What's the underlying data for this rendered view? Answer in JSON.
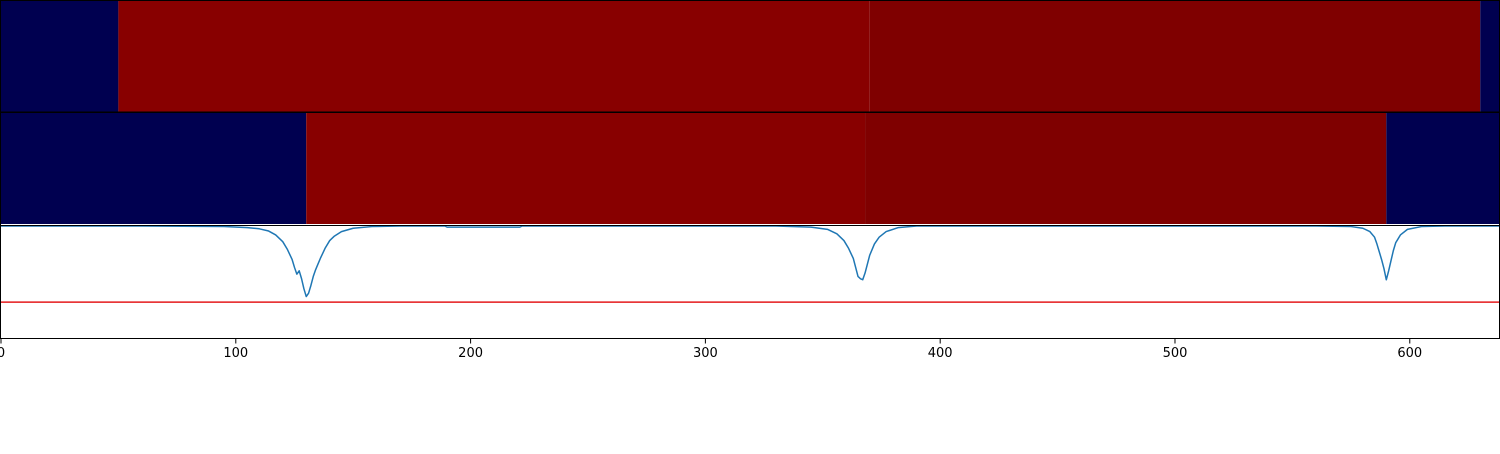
{
  "chart_data": {
    "type": "line",
    "title": "",
    "xlabel": "",
    "ylabel": "",
    "xlim": [
      0,
      638
    ],
    "x_ticks": [
      0,
      100,
      200,
      300,
      400,
      500,
      600
    ],
    "grid": false,
    "legend": "none",
    "segment_rows": [
      {
        "segments": [
          {
            "start": 0,
            "end": 50,
            "color": "#000050"
          },
          {
            "start": 50,
            "end": 370,
            "color": "#880000"
          },
          {
            "start": 370,
            "end": 630,
            "color": "#7f0000"
          },
          {
            "start": 630,
            "end": 638,
            "color": "#000050"
          }
        ]
      },
      {
        "segments": [
          {
            "start": 0,
            "end": 130,
            "color": "#000050"
          },
          {
            "start": 130,
            "end": 368,
            "color": "#880000"
          },
          {
            "start": 368,
            "end": 590,
            "color": "#7f0000"
          },
          {
            "start": 590,
            "end": 638,
            "color": "#000050"
          }
        ]
      }
    ],
    "signal": {
      "color": "#1f77b4",
      "ylim": [
        0,
        1
      ],
      "points": [
        [
          0,
          1.0
        ],
        [
          60,
          1.0
        ],
        [
          95,
          0.995
        ],
        [
          105,
          0.985
        ],
        [
          110,
          0.975
        ],
        [
          114,
          0.955
        ],
        [
          117,
          0.92
        ],
        [
          120,
          0.86
        ],
        [
          122,
          0.79
        ],
        [
          124,
          0.7
        ],
        [
          125,
          0.63
        ],
        [
          126,
          0.57
        ],
        [
          127,
          0.6
        ],
        [
          128,
          0.53
        ],
        [
          129,
          0.44
        ],
        [
          130,
          0.37
        ],
        [
          131,
          0.4
        ],
        [
          132,
          0.47
        ],
        [
          133,
          0.55
        ],
        [
          134,
          0.61
        ],
        [
          135,
          0.66
        ],
        [
          136,
          0.71
        ],
        [
          138,
          0.8
        ],
        [
          140,
          0.87
        ],
        [
          142,
          0.91
        ],
        [
          145,
          0.95
        ],
        [
          150,
          0.98
        ],
        [
          158,
          0.995
        ],
        [
          170,
          1.0
        ],
        [
          189,
          1.0
        ],
        [
          190,
          0.99
        ],
        [
          221,
          0.99
        ],
        [
          222,
          1.0
        ],
        [
          330,
          1.0
        ],
        [
          345,
          0.99
        ],
        [
          352,
          0.97
        ],
        [
          356,
          0.93
        ],
        [
          359,
          0.87
        ],
        [
          361,
          0.8
        ],
        [
          363,
          0.71
        ],
        [
          364,
          0.63
        ],
        [
          365,
          0.55
        ],
        [
          366,
          0.53
        ],
        [
          367,
          0.52
        ],
        [
          368,
          0.58
        ],
        [
          369,
          0.66
        ],
        [
          370,
          0.74
        ],
        [
          372,
          0.84
        ],
        [
          374,
          0.9
        ],
        [
          377,
          0.95
        ],
        [
          382,
          0.985
        ],
        [
          390,
          1.0
        ],
        [
          560,
          1.0
        ],
        [
          575,
          0.995
        ],
        [
          580,
          0.98
        ],
        [
          583,
          0.95
        ],
        [
          585,
          0.9
        ],
        [
          586,
          0.84
        ],
        [
          587,
          0.77
        ],
        [
          588,
          0.7
        ],
        [
          589,
          0.62
        ],
        [
          590,
          0.52
        ],
        [
          591,
          0.6
        ],
        [
          592,
          0.69
        ],
        [
          593,
          0.78
        ],
        [
          594,
          0.85
        ],
        [
          596,
          0.92
        ],
        [
          599,
          0.97
        ],
        [
          605,
          0.995
        ],
        [
          615,
          1.0
        ],
        [
          638,
          1.0
        ]
      ]
    },
    "threshold": {
      "value": 0.32,
      "color": "#e41a1c"
    }
  }
}
